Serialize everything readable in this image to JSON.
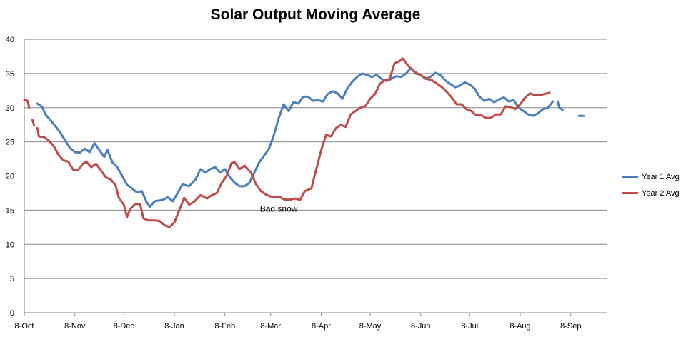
{
  "chart_data": {
    "type": "line",
    "title": "Solar Output Moving Average",
    "xlabel": "",
    "ylabel": "",
    "ylim": [
      0,
      40
    ],
    "yticks": [
      "0",
      "5",
      "10",
      "15",
      "20",
      "25",
      "30",
      "35",
      "40"
    ],
    "xlim": [
      "2013-10-08",
      "2014-09-30"
    ],
    "xtick_labels": [
      "8-Oct",
      "8-Nov",
      "8-Dec",
      "8-Jan",
      "8-Feb",
      "8-Mar",
      "8-Apr",
      "8-May",
      "8-Jun",
      "8-Jul",
      "8-Aug",
      "8-Sep"
    ],
    "xtick_dates": [
      "2013-10-08",
      "2013-11-08",
      "2013-12-08",
      "2014-01-08",
      "2014-02-08",
      "2014-03-08",
      "2014-04-08",
      "2014-05-08",
      "2014-06-08",
      "2014-07-08",
      "2014-08-08",
      "2014-09-08"
    ],
    "grid": "horizontal",
    "legend_position": "right",
    "annotations": [
      {
        "text": "Bad snow",
        "date": "2014-03-08",
        "y": 15.2
      }
    ],
    "series": [
      {
        "name": "Year 1 Avg",
        "color": "#4a7ebb",
        "points": [
          [
            "2013-10-16",
            30.6
          ],
          [
            "2013-10-19",
            30.1
          ],
          [
            "2013-10-21",
            29.0
          ],
          [
            "2013-10-24",
            28.2
          ],
          [
            "2013-10-27",
            27.3
          ],
          [
            "2013-10-30",
            26.4
          ],
          [
            "2013-11-02",
            25.2
          ],
          [
            "2013-11-05",
            24.1
          ],
          [
            "2013-11-08",
            23.5
          ],
          [
            "2013-11-11",
            23.4
          ],
          [
            "2013-11-14",
            24.0
          ],
          [
            "2013-11-17",
            23.5
          ],
          [
            "2013-11-20",
            24.8
          ],
          [
            "2013-11-23",
            23.8
          ],
          [
            "2013-11-26",
            22.8
          ],
          [
            "2013-11-28",
            23.8
          ],
          [
            "2013-12-01",
            22.0
          ],
          [
            "2013-12-04",
            21.3
          ],
          [
            "2013-12-07",
            20.0
          ],
          [
            "2013-12-10",
            18.7
          ],
          [
            "2013-12-13",
            18.2
          ],
          [
            "2013-12-16",
            17.6
          ],
          [
            "2013-12-19",
            17.8
          ],
          [
            "2013-12-22",
            16.2
          ],
          [
            "2013-12-24",
            15.5
          ],
          [
            "2013-12-27",
            16.3
          ],
          [
            "2014-01-01",
            16.5
          ],
          [
            "2014-01-04",
            16.9
          ],
          [
            "2014-01-07",
            16.3
          ],
          [
            "2014-01-10",
            17.5
          ],
          [
            "2014-01-13",
            18.8
          ],
          [
            "2014-01-17",
            18.5
          ],
          [
            "2014-01-21",
            19.5
          ],
          [
            "2014-01-24",
            21.0
          ],
          [
            "2014-01-27",
            20.5
          ],
          [
            "2014-01-30",
            21.0
          ],
          [
            "2014-02-02",
            21.3
          ],
          [
            "2014-02-05",
            20.5
          ],
          [
            "2014-02-08",
            21.0
          ],
          [
            "2014-02-11",
            19.8
          ],
          [
            "2014-02-14",
            19.0
          ],
          [
            "2014-02-17",
            18.5
          ],
          [
            "2014-02-20",
            18.5
          ],
          [
            "2014-02-23",
            19.0
          ],
          [
            "2014-02-26",
            20.5
          ],
          [
            "2014-03-01",
            22.0
          ],
          [
            "2014-03-04",
            23.0
          ],
          [
            "2014-03-07",
            24.0
          ],
          [
            "2014-03-10",
            26.0
          ],
          [
            "2014-03-13",
            28.5
          ],
          [
            "2014-03-16",
            30.5
          ],
          [
            "2014-03-19",
            29.5
          ],
          [
            "2014-03-22",
            30.8
          ],
          [
            "2014-03-25",
            30.6
          ],
          [
            "2014-03-28",
            31.6
          ],
          [
            "2014-03-31",
            31.6
          ],
          [
            "2014-04-03",
            31.0
          ],
          [
            "2014-04-06",
            31.1
          ],
          [
            "2014-04-09",
            30.9
          ],
          [
            "2014-04-12",
            32.0
          ],
          [
            "2014-04-15",
            32.4
          ],
          [
            "2014-04-18",
            32.1
          ],
          [
            "2014-04-21",
            31.3
          ],
          [
            "2014-04-24",
            32.8
          ],
          [
            "2014-04-27",
            33.8
          ],
          [
            "2014-04-30",
            34.5
          ],
          [
            "2014-05-03",
            35.0
          ],
          [
            "2014-05-06",
            34.8
          ],
          [
            "2014-05-09",
            34.5
          ],
          [
            "2014-05-12",
            34.8
          ],
          [
            "2014-05-15",
            34.2
          ],
          [
            "2014-05-18",
            33.9
          ],
          [
            "2014-05-21",
            34.2
          ],
          [
            "2014-05-24",
            34.6
          ],
          [
            "2014-05-27",
            34.5
          ],
          [
            "2014-05-30",
            35.0
          ],
          [
            "2014-06-02",
            35.8
          ],
          [
            "2014-06-05",
            35.0
          ],
          [
            "2014-06-08",
            34.8
          ],
          [
            "2014-06-11",
            34.2
          ],
          [
            "2014-06-14",
            34.5
          ],
          [
            "2014-06-17",
            35.1
          ],
          [
            "2014-06-20",
            34.8
          ],
          [
            "2014-06-23",
            34.0
          ],
          [
            "2014-06-26",
            33.5
          ],
          [
            "2014-06-29",
            33.0
          ],
          [
            "2014-07-02",
            33.2
          ],
          [
            "2014-07-05",
            33.7
          ],
          [
            "2014-07-08",
            33.4
          ],
          [
            "2014-07-11",
            32.8
          ],
          [
            "2014-07-14",
            31.6
          ],
          [
            "2014-07-17",
            31.0
          ],
          [
            "2014-07-20",
            31.3
          ],
          [
            "2014-07-23",
            30.8
          ],
          [
            "2014-07-26",
            31.2
          ],
          [
            "2014-07-29",
            31.5
          ],
          [
            "2014-08-01",
            30.9
          ],
          [
            "2014-08-04",
            31.1
          ],
          [
            "2014-08-07",
            30.0
          ],
          [
            "2014-08-10",
            29.5
          ],
          [
            "2014-08-13",
            29.0
          ],
          [
            "2014-08-16",
            28.8
          ],
          [
            "2014-08-19",
            29.2
          ],
          [
            "2014-08-22",
            29.8
          ],
          [
            "2014-08-25",
            30.0
          ],
          [
            "2014-08-28",
            30.9
          ],
          null,
          [
            "2014-08-31",
            30.9
          ],
          [
            "2014-09-01",
            30.0
          ],
          [
            "2014-09-03",
            29.7
          ],
          null,
          [
            "2014-09-13",
            28.8
          ],
          [
            "2014-09-16",
            28.8
          ]
        ]
      },
      {
        "name": "Year 2 Avg",
        "color": "#be4b48",
        "points": [
          [
            "2013-10-08",
            31.2
          ],
          [
            "2013-10-10",
            31.0
          ],
          [
            "2013-10-11",
            30.0
          ],
          null,
          [
            "2013-10-13",
            28.2
          ],
          [
            "2013-10-14",
            27.4
          ],
          null,
          [
            "2013-10-16",
            27.0
          ],
          [
            "2013-10-17",
            25.8
          ],
          [
            "2013-10-20",
            25.7
          ],
          [
            "2013-10-23",
            25.2
          ],
          [
            "2013-10-26",
            24.4
          ],
          [
            "2013-10-29",
            23.1
          ],
          [
            "2013-11-01",
            22.3
          ],
          [
            "2013-11-04",
            22.1
          ],
          [
            "2013-11-07",
            20.9
          ],
          [
            "2013-11-10",
            20.9
          ],
          [
            "2013-11-13",
            21.8
          ],
          [
            "2013-11-15",
            22.1
          ],
          [
            "2013-11-18",
            21.3
          ],
          [
            "2013-11-21",
            21.8
          ],
          [
            "2013-11-24",
            20.8
          ],
          [
            "2013-11-27",
            19.8
          ],
          [
            "2013-11-30",
            19.5
          ],
          [
            "2013-12-03",
            18.6
          ],
          [
            "2013-12-05",
            16.8
          ],
          [
            "2013-12-08",
            15.8
          ],
          [
            "2013-12-10",
            14.0
          ],
          [
            "2013-12-12",
            15.2
          ],
          [
            "2013-12-15",
            15.9
          ],
          [
            "2013-12-18",
            15.9
          ],
          [
            "2013-12-20",
            13.8
          ],
          [
            "2013-12-23",
            13.5
          ],
          [
            "2013-12-27",
            13.5
          ],
          [
            "2013-12-30",
            13.4
          ],
          [
            "2014-01-02",
            12.8
          ],
          [
            "2014-01-05",
            12.5
          ],
          [
            "2014-01-08",
            13.2
          ],
          [
            "2014-01-11",
            15.0
          ],
          [
            "2014-01-14",
            16.8
          ],
          [
            "2014-01-17",
            15.8
          ],
          [
            "2014-01-20",
            16.2
          ],
          [
            "2014-01-24",
            17.2
          ],
          [
            "2014-01-28",
            16.7
          ],
          [
            "2014-01-31",
            17.2
          ],
          [
            "2014-02-03",
            17.5
          ],
          [
            "2014-02-06",
            19.0
          ],
          [
            "2014-02-09",
            20.0
          ],
          [
            "2014-02-12",
            21.9
          ],
          [
            "2014-02-14",
            22.0
          ],
          [
            "2014-02-17",
            21.0
          ],
          [
            "2014-02-20",
            21.5
          ],
          [
            "2014-02-24",
            20.5
          ],
          [
            "2014-02-27",
            18.8
          ],
          [
            "2014-03-02",
            17.8
          ],
          [
            "2014-03-05",
            17.3
          ],
          [
            "2014-03-09",
            16.9
          ],
          [
            "2014-03-13",
            17.0
          ],
          [
            "2014-03-16",
            16.6
          ],
          [
            "2014-03-19",
            16.5
          ],
          [
            "2014-03-23",
            16.7
          ],
          [
            "2014-03-26",
            16.5
          ],
          [
            "2014-03-29",
            17.8
          ],
          [
            "2014-04-02",
            18.2
          ],
          [
            "2014-04-05",
            21.0
          ],
          [
            "2014-04-08",
            23.8
          ],
          [
            "2014-04-11",
            26.0
          ],
          [
            "2014-04-14",
            25.8
          ],
          [
            "2014-04-17",
            27.0
          ],
          [
            "2014-04-20",
            27.5
          ],
          [
            "2014-04-23",
            27.2
          ],
          [
            "2014-04-26",
            29.0
          ],
          [
            "2014-04-29",
            29.5
          ],
          [
            "2014-05-02",
            30.0
          ],
          [
            "2014-05-05",
            30.2
          ],
          [
            "2014-05-08",
            31.3
          ],
          [
            "2014-05-11",
            32.0
          ],
          [
            "2014-05-14",
            33.5
          ],
          [
            "2014-05-17",
            34.0
          ],
          [
            "2014-05-20",
            34.2
          ],
          [
            "2014-05-23",
            36.5
          ],
          [
            "2014-05-26",
            36.8
          ],
          [
            "2014-05-28",
            37.2
          ],
          [
            "2014-05-31",
            36.2
          ],
          [
            "2014-06-03",
            35.5
          ],
          [
            "2014-06-06",
            35.0
          ],
          [
            "2014-06-09",
            34.6
          ],
          [
            "2014-06-12",
            34.2
          ],
          [
            "2014-06-15",
            34.0
          ],
          [
            "2014-06-18",
            33.5
          ],
          [
            "2014-06-21",
            33.0
          ],
          [
            "2014-06-24",
            32.3
          ],
          [
            "2014-06-27",
            31.5
          ],
          [
            "2014-06-30",
            30.5
          ],
          [
            "2014-07-03",
            30.5
          ],
          [
            "2014-07-06",
            29.8
          ],
          [
            "2014-07-09",
            29.5
          ],
          [
            "2014-07-12",
            28.9
          ],
          [
            "2014-07-15",
            28.9
          ],
          [
            "2014-07-18",
            28.5
          ],
          [
            "2014-07-21",
            28.5
          ],
          [
            "2014-07-24",
            29.0
          ],
          [
            "2014-07-27",
            29.0
          ],
          [
            "2014-07-30",
            30.2
          ],
          [
            "2014-08-02",
            30.1
          ],
          [
            "2014-08-05",
            29.8
          ],
          [
            "2014-08-08",
            30.5
          ],
          [
            "2014-08-11",
            31.5
          ],
          [
            "2014-08-14",
            32.1
          ],
          [
            "2014-08-17",
            31.8
          ],
          [
            "2014-08-20",
            31.8
          ],
          [
            "2014-08-23",
            32.0
          ],
          [
            "2014-08-26",
            32.2
          ]
        ]
      }
    ]
  }
}
